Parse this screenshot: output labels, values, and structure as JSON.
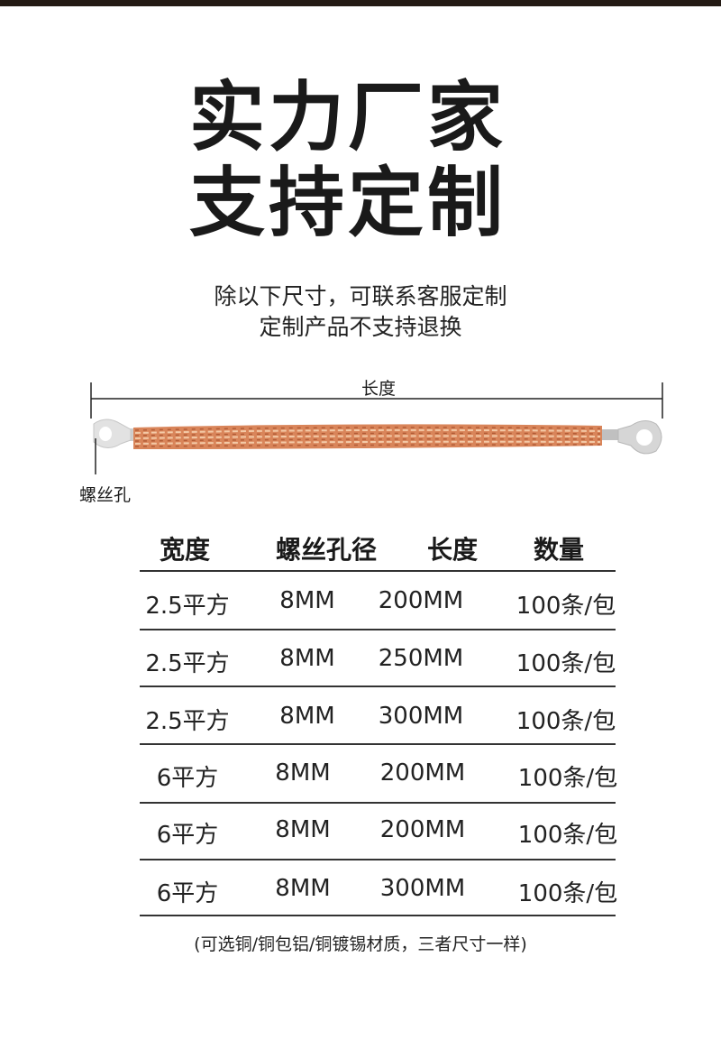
{
  "headline": [
    "实力厂家",
    "支持定制"
  ],
  "subtitle": [
    "除以下尺寸，可联系客服定制",
    "定制产品不支持退换"
  ],
  "diagram": {
    "length_label": "长度",
    "hole_label": "螺丝孔",
    "colors": {
      "copper": "#d9855a",
      "lug": "#d8d8d8"
    }
  },
  "table": {
    "headers": [
      "宽度",
      "螺丝孔径",
      "长度",
      "数量"
    ],
    "rows": [
      [
        "2.5平方",
        "8MM",
        "200MM",
        "100条/包"
      ],
      [
        "2.5平方",
        "8MM",
        "250MM",
        "100条/包"
      ],
      [
        "2.5平方",
        "8MM",
        "300MM",
        "100条/包"
      ],
      [
        "6平方",
        "8MM",
        "200MM",
        "100条/包"
      ],
      [
        "6平方",
        "8MM",
        "200MM",
        "100条/包"
      ],
      [
        "6平方",
        "8MM",
        "300MM",
        "100条/包"
      ]
    ]
  },
  "note": "(可选铜/铜包铝/铜镀锡材质，三者尺寸一样)"
}
